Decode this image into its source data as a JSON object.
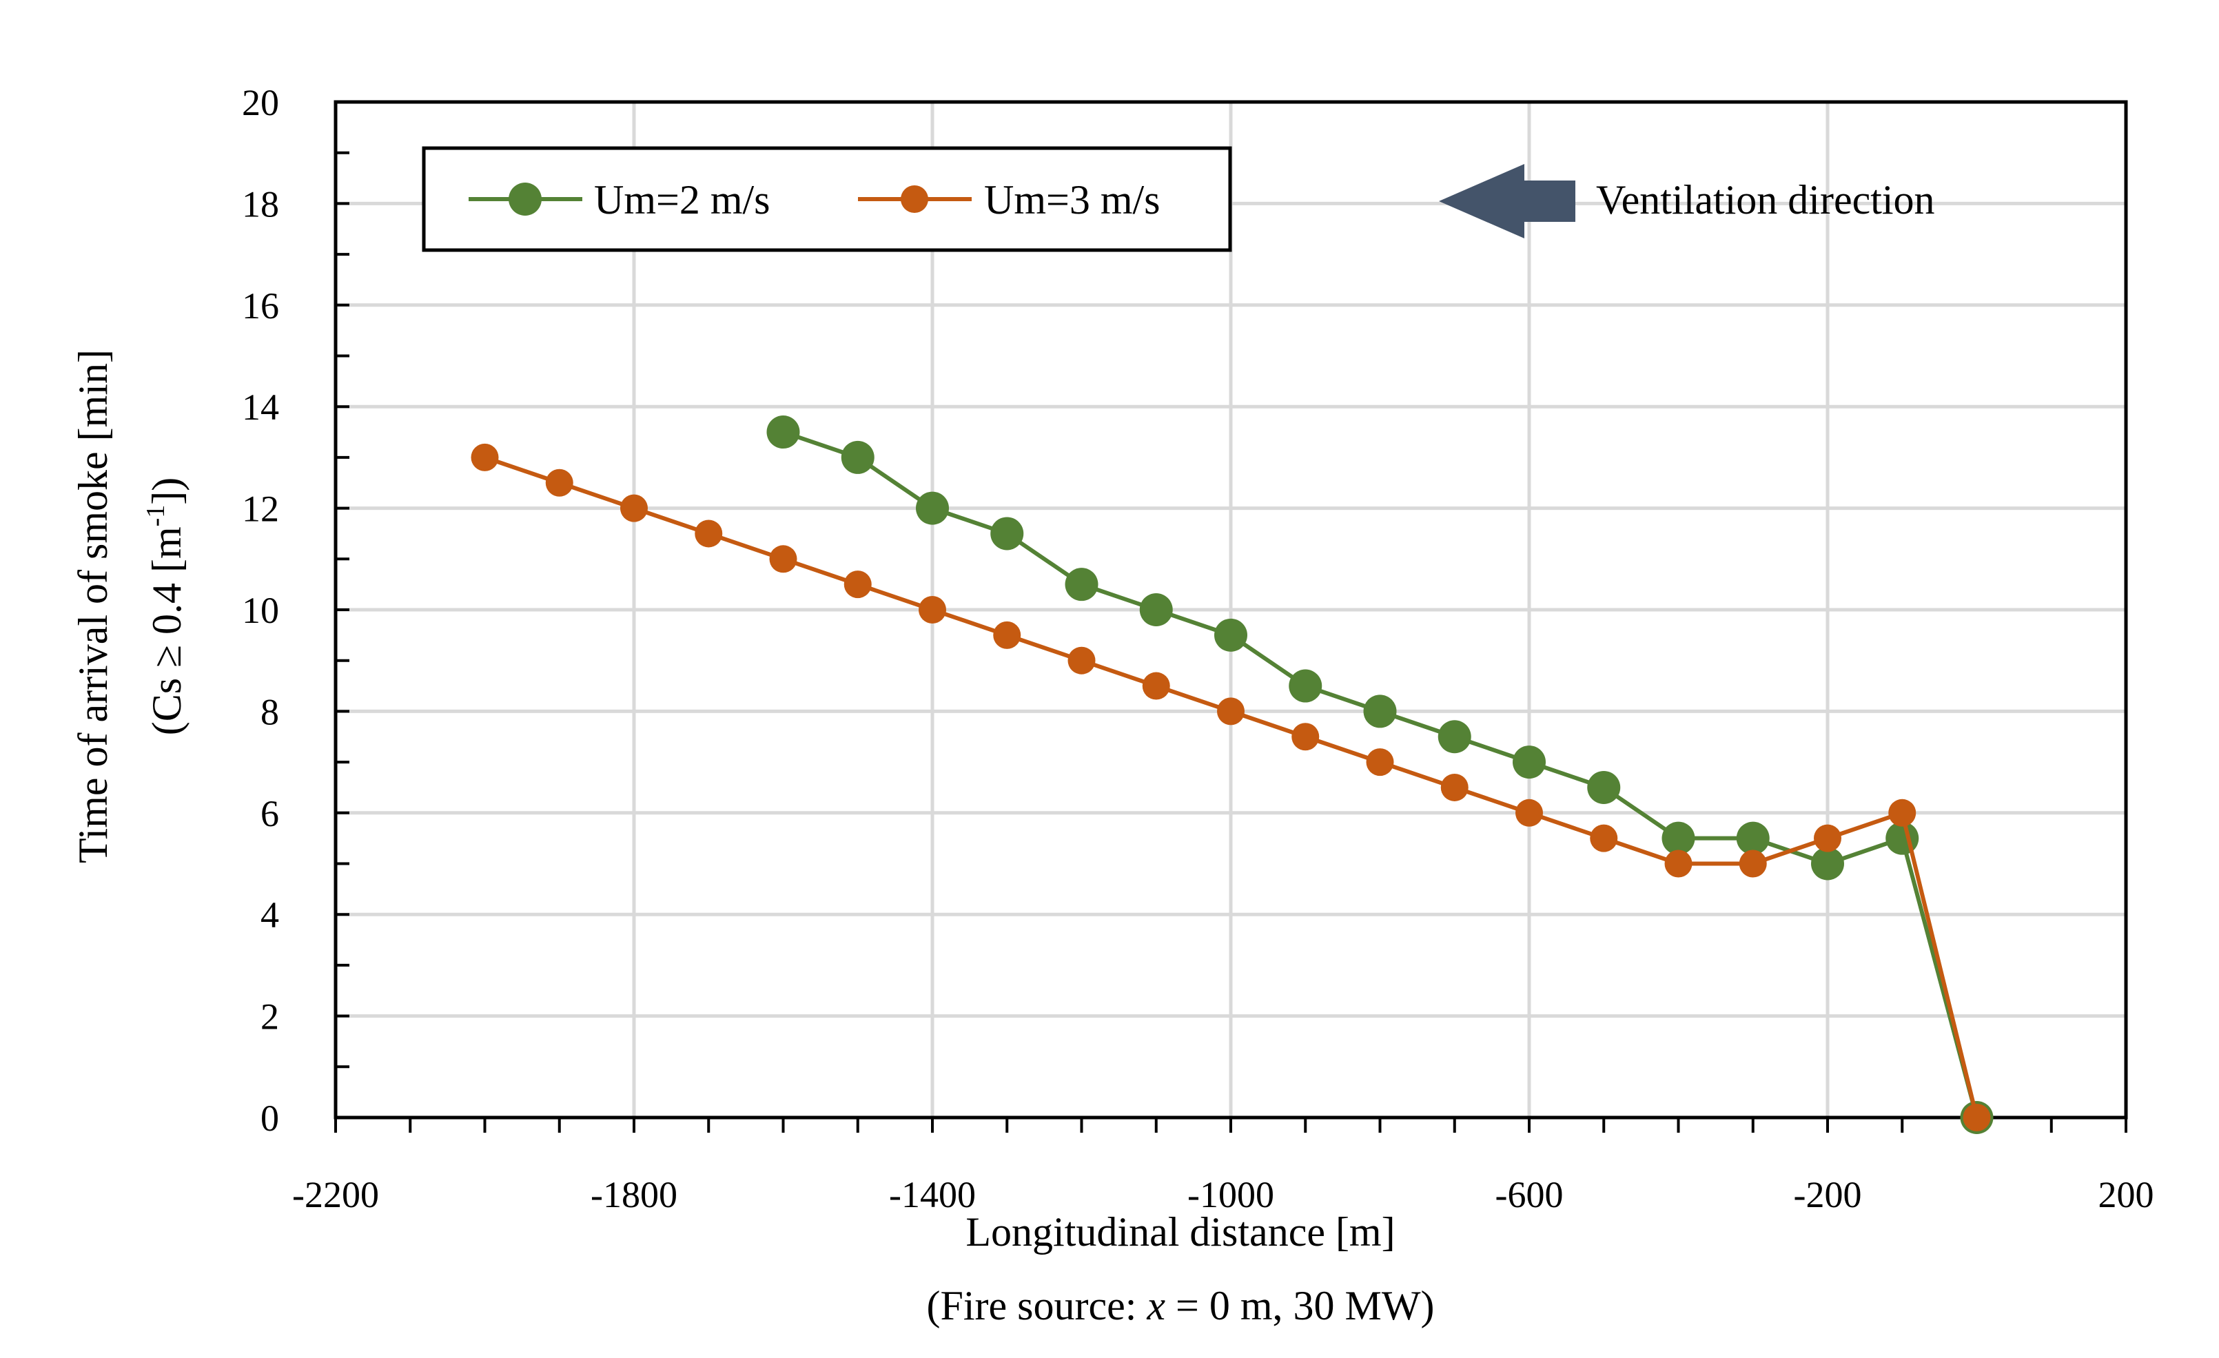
{
  "chart_data": {
    "type": "line",
    "xlabel": "Longitudinal distance [m]",
    "xlabel_note": "(Fire source: ",
    "xlabel_note_var": "x",
    "xlabel_note_rest": " = 0 m, 30 MW)",
    "ylabel": "Time of arrival of smoke [min]",
    "ylabel_line2_pre": "(Cs ≥ 0.4 [m",
    "ylabel_line2_sup": "-1",
    "ylabel_line2_post": "])",
    "xlim": [
      -2200,
      200
    ],
    "ylim": [
      0,
      20
    ],
    "x_ticks": [
      -2200,
      -1800,
      -1400,
      -1000,
      -600,
      -200,
      200
    ],
    "x_minor_step": 100,
    "y_ticks": [
      0,
      2,
      4,
      6,
      8,
      10,
      12,
      14,
      16,
      18,
      20
    ],
    "y_minor_step": 1,
    "grid": true,
    "legend_position": "top-left",
    "series": [
      {
        "name": "Um=2 m/s",
        "color": "#548235",
        "x": [
          -1600,
          -1500,
          -1400,
          -1300,
          -1200,
          -1100,
          -1000,
          -900,
          -800,
          -700,
          -600,
          -500,
          -400,
          -300,
          -200,
          -100,
          0
        ],
        "values": [
          13.5,
          13,
          12,
          11.5,
          10.5,
          10,
          9.5,
          8.5,
          8,
          7.5,
          7,
          6.5,
          5.5,
          5.5,
          5,
          5.5,
          0
        ]
      },
      {
        "name": "Um=3 m/s",
        "color": "#C55A11",
        "x": [
          -2000,
          -1900,
          -1800,
          -1700,
          -1600,
          -1500,
          -1400,
          -1300,
          -1200,
          -1100,
          -1000,
          -900,
          -800,
          -700,
          -600,
          -500,
          -400,
          -300,
          -200,
          -100,
          0
        ],
        "values": [
          13,
          12.5,
          12,
          11.5,
          11,
          10.5,
          10,
          9.5,
          9,
          8.5,
          8,
          7.5,
          7,
          6.5,
          6,
          5.5,
          5,
          5,
          5.5,
          6,
          0
        ]
      }
    ],
    "annotation": {
      "text": "Ventilation direction",
      "arrow": "left",
      "arrow_color": "#44546A"
    }
  }
}
